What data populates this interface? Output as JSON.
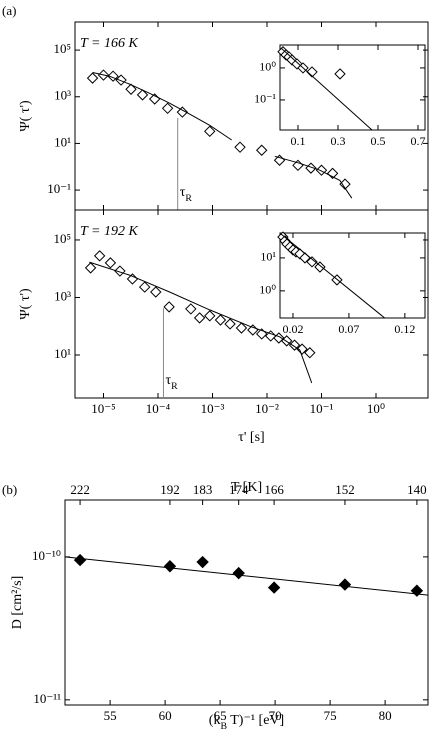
{
  "chart_data": [
    {
      "type": "scatter",
      "panel_label": "(a)",
      "annotation": "T = 166 K",
      "ylabel": "Ψ( τ')",
      "xscale": "log",
      "yscale": "log",
      "xlim": [
        3e-06,
        9
      ],
      "ylim": [
        0.014,
        1600000
      ],
      "xticks": [
        1e-05,
        0.0001,
        0.001,
        0.01,
        0.1,
        1
      ],
      "yticks": [
        {
          "value": 100000,
          "label": "10⁵"
        },
        {
          "value": 1000,
          "label": "10³"
        },
        {
          "value": 10,
          "label": "10¹"
        },
        {
          "value": 0.1,
          "label": "10⁻¹"
        }
      ],
      "tau_marker": {
        "x": 0.00023,
        "y": 220,
        "label": [
          "τ",
          "R"
        ]
      },
      "series": [
        {
          "mode": "markers",
          "marker": "open-diamond",
          "color": "#000000",
          "x": [
            6.3e-06,
            1e-05,
            1.5e-05,
            2.1e-05,
            3.2e-05,
            5.2e-05,
            8.7e-05,
            0.00015,
            0.00028,
            0.00089,
            0.0032,
            0.008,
            0.017,
            0.037,
            0.064,
            0.1,
            0.16,
            0.27
          ],
          "values": [
            6300,
            8500,
            7600,
            5200,
            2100,
            1200,
            800,
            320,
            220,
            33,
            6.9,
            5.1,
            1.9,
            1.15,
            0.87,
            0.71,
            0.52,
            0.18
          ]
        },
        {
          "mode": "line",
          "color": "#000000",
          "x": [
            6.3e-06,
            1.29e-05,
            3e-05,
            7e-05,
            0.000163,
            0.00038,
            0.00089,
            0.00225
          ],
          "values": [
            11000,
            7600,
            3500,
            1400,
            530,
            180,
            60,
            14
          ]
        },
        {
          "mode": "line",
          "color": "#000000",
          "x": [
            0.0139,
            0.04,
            0.093,
            0.217,
            0.36
          ],
          "values": [
            2.8,
            1.4,
            0.71,
            0.26,
            0.045
          ]
        }
      ]
    },
    {
      "type": "scatter",
      "annotation": "T = 192 K",
      "ylabel": "Ψ( τ')",
      "xlabel": "τ' [s]",
      "xscale": "log",
      "yscale": "log",
      "xlim": [
        3e-06,
        9
      ],
      "ylim": [
        0.32,
        1100000
      ],
      "xticks": [
        {
          "value": 1e-05,
          "label": "10⁻⁵"
        },
        {
          "value": 0.0001,
          "label": "10⁻⁴"
        },
        {
          "value": 0.001,
          "label": "10⁻³"
        },
        {
          "value": 0.01,
          "label": "10⁻²"
        },
        {
          "value": 0.1,
          "label": "10⁻¹"
        },
        {
          "value": 1,
          "label": "10⁰"
        }
      ],
      "yticks": [
        {
          "value": 100000,
          "label": "10⁵"
        },
        {
          "value": 1000,
          "label": "10³"
        },
        {
          "value": 10,
          "label": "10¹"
        }
      ],
      "tau_marker": {
        "x": 0.000126,
        "y": 690,
        "label": [
          "τ",
          "R"
        ]
      },
      "series": [
        {
          "mode": "markers",
          "marker": "open-diamond",
          "color": "#000000",
          "x": [
            5.8e-06,
            8.5e-06,
            1.34e-05,
            2e-05,
            3.4e-05,
            5.7e-05,
            9.1e-05,
            0.00016,
            0.0004,
            0.00058,
            0.00089,
            0.0014,
            0.0021,
            0.0034,
            0.0055,
            0.008,
            0.0117,
            0.0165,
            0.023,
            0.032,
            0.044,
            0.061
          ],
          "values": [
            10700,
            28000,
            16000,
            8300,
            4400,
            2300,
            1550,
            470,
            400,
            195,
            230,
            165,
            120,
            87,
            74,
            54,
            46,
            39,
            31,
            22,
            16,
            12
          ]
        },
        {
          "mode": "line",
          "color": "#000000",
          "x": [
            5.5e-06,
            3e-05,
            0.000163,
            0.00089,
            0.0048,
            0.017,
            0.04,
            0.066
          ],
          "values": [
            17000,
            6000,
            1550,
            370,
            100,
            43,
            15,
            1.07
          ]
        }
      ]
    },
    {
      "type": "scatter",
      "xscale": "linear",
      "yscale": "log",
      "xlim": [
        0.01,
        0.735
      ],
      "ylim": [
        0.0115,
        5.2
      ],
      "xticks": [
        0.1,
        0.3,
        0.5,
        0.7
      ],
      "yticks": [
        {
          "value": 1,
          "label": "10⁰"
        },
        {
          "value": 0.1,
          "label": "10⁻¹"
        }
      ],
      "series": [
        {
          "mode": "markers",
          "marker": "open-diamond",
          "color": "#000000",
          "x": [
            0.025,
            0.04,
            0.055,
            0.07,
            0.095,
            0.125,
            0.17,
            0.31
          ],
          "values": [
            3.2,
            2.55,
            2.2,
            1.78,
            1.33,
            1.0,
            0.75,
            0.65
          ]
        },
        {
          "mode": "line",
          "color": "#000000",
          "x": [
            0.015,
            0.47
          ],
          "values": [
            4.2,
            0.0115
          ]
        }
      ]
    },
    {
      "type": "scatter",
      "xscale": "linear",
      "yscale": "log",
      "xlim": [
        0.0084,
        0.138
      ],
      "ylim": [
        0.15,
        57
      ],
      "xticks": [
        0.02,
        0.07,
        0.12
      ],
      "yticks": [
        {
          "value": 10,
          "label": "10¹"
        },
        {
          "value": 1,
          "label": "10⁰"
        }
      ],
      "series": [
        {
          "mode": "markers",
          "marker": "open-diamond",
          "color": "#000000",
          "x": [
            0.011,
            0.0128,
            0.0146,
            0.0173,
            0.02,
            0.0227,
            0.0262,
            0.0307,
            0.037,
            0.0441,
            0.0593
          ],
          "values": [
            43,
            32.8,
            26.5,
            21.5,
            17.5,
            15.2,
            13.2,
            10,
            7.6,
            5.3,
            2.15
          ]
        },
        {
          "mode": "line",
          "color": "#000000",
          "x": [
            0.0093,
            0.102
          ],
          "values": [
            53,
            0.15
          ]
        }
      ]
    },
    {
      "type": "scatter",
      "panel_label": "(b)",
      "ylabel": "D [cm²/s]",
      "xlabel": [
        "(k",
        "B",
        " T)⁻¹ [eV]"
      ],
      "x2label": "T [K]",
      "xscale": "linear",
      "yscale": "log",
      "xlim": [
        50.9,
        83.9
      ],
      "ylim": [
        9.2e-12,
        2.5e-10
      ],
      "xticks": [
        55,
        60,
        65,
        70,
        75,
        80
      ],
      "x2ticks": [
        {
          "value": 52.27,
          "label": "222"
        },
        {
          "value": 60.44,
          "label": "192"
        },
        {
          "value": 63.41,
          "label": "183"
        },
        {
          "value": 66.69,
          "label": "174"
        },
        {
          "value": 69.91,
          "label": "166"
        },
        {
          "value": 76.35,
          "label": "152"
        },
        {
          "value": 82.89,
          "label": "140"
        }
      ],
      "yticks": [
        {
          "value": 1e-10,
          "label": "10⁻¹⁰"
        },
        {
          "value": 1e-11,
          "label": "10⁻¹¹"
        }
      ],
      "series": [
        {
          "mode": "markers",
          "marker": "filled-diamond",
          "color": "#000000",
          "x": [
            52.27,
            60.44,
            63.41,
            66.69,
            69.91,
            76.35,
            82.89
          ],
          "values": [
            9.5e-11,
            8.6e-11,
            9.2e-11,
            7.7e-11,
            6.1e-11,
            6.4e-11,
            5.8e-11
          ]
        },
        {
          "mode": "line",
          "color": "#000000",
          "x": [
            50.9,
            83.9
          ],
          "values": [
            1e-10,
            5.4e-11
          ]
        }
      ]
    }
  ]
}
